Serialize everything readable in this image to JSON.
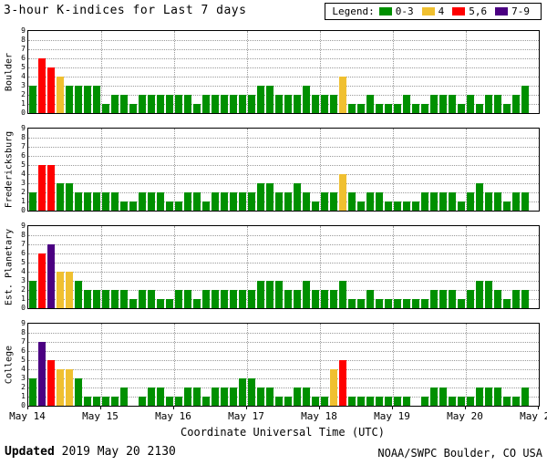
{
  "footer": {
    "updated_label": "Updated",
    "updated_value": "2019 May 20 2130",
    "credit": "NOAA/SWPC Boulder, CO USA"
  },
  "chart_data": {
    "type": "bar",
    "title": "3-hour K-indices for Last 7 days",
    "xlabel": "Coordinate Universal Time (UTC)",
    "ylim": [
      0,
      9
    ],
    "bars_per_day": 8,
    "interval_hours": 3,
    "grid": "dotted",
    "x_ticks": [
      "May 14",
      "May 15",
      "May 16",
      "May 17",
      "May 18",
      "May 19",
      "May 20",
      "May 21"
    ],
    "legend": {
      "label": "Legend:",
      "items": [
        {
          "label": "0-3",
          "color": "#009000"
        },
        {
          "label": "4",
          "color": "#F0C030"
        },
        {
          "label": "5,6",
          "color": "#FF0000"
        },
        {
          "label": "7-9",
          "color": "#4B0082"
        }
      ]
    },
    "color_rules": [
      {
        "max": 3,
        "color": "#009000"
      },
      {
        "max": 4,
        "color": "#F0C030"
      },
      {
        "max": 6,
        "color": "#FF0000"
      },
      {
        "max": 9,
        "color": "#4B0082"
      }
    ],
    "panels": [
      {
        "station": "Boulder",
        "values": [
          3,
          6,
          5,
          4,
          3,
          3,
          3,
          3,
          1,
          2,
          2,
          1,
          2,
          2,
          2,
          2,
          2,
          2,
          1,
          2,
          2,
          2,
          2,
          2,
          2,
          3,
          3,
          2,
          2,
          2,
          3,
          2,
          2,
          2,
          4,
          1,
          1,
          2,
          1,
          1,
          1,
          2,
          1,
          1,
          2,
          2,
          2,
          1,
          2,
          1,
          2,
          2,
          1,
          2,
          3
        ]
      },
      {
        "station": "Fredericksburg",
        "values": [
          2,
          5,
          5,
          3,
          3,
          2,
          2,
          2,
          2,
          2,
          1,
          1,
          2,
          2,
          2,
          1,
          1,
          2,
          2,
          1,
          2,
          2,
          2,
          2,
          2,
          3,
          3,
          2,
          2,
          3,
          2,
          1,
          2,
          2,
          4,
          2,
          1,
          2,
          2,
          1,
          1,
          1,
          1,
          2,
          2,
          2,
          2,
          1,
          2,
          3,
          2,
          2,
          1,
          2,
          2
        ]
      },
      {
        "station": "Est. Planetary",
        "values": [
          3,
          6,
          7,
          4,
          4,
          3,
          2,
          2,
          2,
          2,
          2,
          1,
          2,
          2,
          1,
          1,
          2,
          2,
          1,
          2,
          2,
          2,
          2,
          2,
          2,
          3,
          3,
          3,
          2,
          2,
          3,
          2,
          2,
          2,
          3,
          1,
          1,
          2,
          1,
          1,
          1,
          1,
          1,
          1,
          2,
          2,
          2,
          1,
          2,
          3,
          3,
          2,
          1,
          2,
          2
        ]
      },
      {
        "station": "College",
        "values": [
          3,
          7,
          5,
          4,
          4,
          3,
          1,
          1,
          1,
          1,
          2,
          0,
          1,
          2,
          2,
          1,
          1,
          2,
          2,
          1,
          2,
          2,
          2,
          3,
          3,
          2,
          2,
          1,
          1,
          2,
          2,
          1,
          1,
          4,
          5,
          1,
          1,
          1,
          1,
          1,
          1,
          1,
          0,
          1,
          2,
          2,
          1,
          1,
          1,
          2,
          2,
          2,
          1,
          1,
          2
        ]
      }
    ]
  }
}
